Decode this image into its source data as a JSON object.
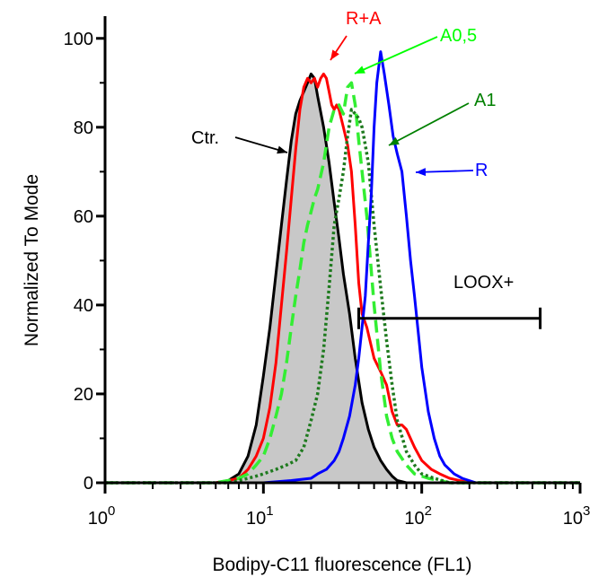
{
  "chart_data": {
    "type": "area",
    "xlabel": "Bodipy-C11 fluorescence (FL1)",
    "ylabel": "Normalized To Mode",
    "x_scale": "log",
    "xlim": [
      1,
      1000
    ],
    "ylim": [
      0,
      105
    ],
    "x_ticks": [
      {
        "value": 1,
        "base": "10",
        "exp": "0"
      },
      {
        "value": 10,
        "base": "10",
        "exp": "1"
      },
      {
        "value": 100,
        "base": "10",
        "exp": "2"
      },
      {
        "value": 1000,
        "base": "10",
        "exp": "3"
      }
    ],
    "y_ticks": [
      0,
      20,
      40,
      60,
      80,
      100
    ],
    "grid": false,
    "legend": "none",
    "series": [
      {
        "name": "Ctr.",
        "label_color": "#000000",
        "color": "#000000",
        "fill": "#c8c8c8",
        "style": "solid",
        "points": [
          [
            1,
            0
          ],
          [
            5,
            0
          ],
          [
            6,
            0.5
          ],
          [
            7,
            2
          ],
          [
            8,
            6
          ],
          [
            9,
            13
          ],
          [
            10,
            24
          ],
          [
            11,
            35
          ],
          [
            12,
            47
          ],
          [
            13,
            58
          ],
          [
            14,
            68
          ],
          [
            15,
            77
          ],
          [
            16,
            83
          ],
          [
            17,
            86
          ],
          [
            18,
            88
          ],
          [
            19,
            90
          ],
          [
            20,
            92
          ],
          [
            21,
            91
          ],
          [
            22,
            87
          ],
          [
            24,
            80
          ],
          [
            26,
            72
          ],
          [
            28,
            63
          ],
          [
            30,
            55
          ],
          [
            32,
            47
          ],
          [
            35,
            38
          ],
          [
            38,
            28
          ],
          [
            42,
            18
          ],
          [
            46,
            12
          ],
          [
            50,
            8
          ],
          [
            55,
            5
          ],
          [
            60,
            3
          ],
          [
            65,
            1.5
          ],
          [
            70,
            0.5
          ],
          [
            80,
            0
          ],
          [
            1000,
            0
          ]
        ]
      },
      {
        "name": "R+A",
        "label_color": "#ff0000",
        "color": "#ff0000",
        "style": "solid",
        "points": [
          [
            1,
            0
          ],
          [
            5,
            0
          ],
          [
            6,
            0.5
          ],
          [
            7,
            1
          ],
          [
            8,
            3
          ],
          [
            9,
            6
          ],
          [
            10,
            10
          ],
          [
            11,
            17
          ],
          [
            12,
            27
          ],
          [
            13,
            40
          ],
          [
            14,
            52
          ],
          [
            15,
            64
          ],
          [
            16,
            75
          ],
          [
            17,
            84
          ],
          [
            18,
            89
          ],
          [
            19,
            91
          ],
          [
            20,
            90
          ],
          [
            21,
            91
          ],
          [
            22,
            89
          ],
          [
            23,
            91
          ],
          [
            24,
            92
          ],
          [
            25,
            91
          ],
          [
            26,
            88
          ],
          [
            27,
            85
          ],
          [
            28,
            84
          ],
          [
            29,
            85
          ],
          [
            30,
            84
          ],
          [
            32,
            80
          ],
          [
            34,
            76
          ],
          [
            36,
            70
          ],
          [
            38,
            58
          ],
          [
            40,
            45
          ],
          [
            42,
            38
          ],
          [
            45,
            35
          ],
          [
            50,
            28
          ],
          [
            55,
            25
          ],
          [
            60,
            22
          ],
          [
            65,
            16
          ],
          [
            70,
            13
          ],
          [
            75,
            13
          ],
          [
            80,
            12
          ],
          [
            90,
            8
          ],
          [
            100,
            5
          ],
          [
            115,
            3
          ],
          [
            130,
            2
          ],
          [
            150,
            1
          ],
          [
            200,
            0
          ],
          [
            1000,
            0
          ]
        ]
      },
      {
        "name": "A0,5",
        "label_color": "#00ff00",
        "color": "#33ee33",
        "style": "dashed",
        "points": [
          [
            1,
            0
          ],
          [
            5,
            0
          ],
          [
            6,
            0.5
          ],
          [
            7,
            1
          ],
          [
            8,
            2
          ],
          [
            9,
            4
          ],
          [
            10,
            6
          ],
          [
            11,
            10
          ],
          [
            12,
            15
          ],
          [
            13,
            20
          ],
          [
            14,
            27
          ],
          [
            15,
            35
          ],
          [
            16,
            42
          ],
          [
            17,
            48
          ],
          [
            18,
            54
          ],
          [
            19,
            58
          ],
          [
            20,
            61
          ],
          [
            21,
            64
          ],
          [
            22,
            66
          ],
          [
            24,
            72
          ],
          [
            26,
            80
          ],
          [
            28,
            84
          ],
          [
            30,
            85
          ],
          [
            32,
            83
          ],
          [
            34,
            89
          ],
          [
            36,
            90
          ],
          [
            38,
            85
          ],
          [
            40,
            77
          ],
          [
            42,
            70
          ],
          [
            45,
            60
          ],
          [
            50,
            40
          ],
          [
            55,
            25
          ],
          [
            60,
            15
          ],
          [
            65,
            10
          ],
          [
            70,
            7
          ],
          [
            80,
            4
          ],
          [
            90,
            2
          ],
          [
            110,
            1
          ],
          [
            150,
            0
          ],
          [
            1000,
            0
          ]
        ]
      },
      {
        "name": "A1",
        "label_color": "#008000",
        "color": "#1e7a1e",
        "style": "dotted",
        "points": [
          [
            1,
            0
          ],
          [
            6,
            0
          ],
          [
            7,
            0.5
          ],
          [
            8,
            1
          ],
          [
            9,
            1.5
          ],
          [
            10,
            2
          ],
          [
            12,
            3
          ],
          [
            14,
            4
          ],
          [
            16,
            5
          ],
          [
            18,
            8
          ],
          [
            20,
            14
          ],
          [
            22,
            20
          ],
          [
            24,
            30
          ],
          [
            26,
            44
          ],
          [
            28,
            58
          ],
          [
            30,
            64
          ],
          [
            32,
            70
          ],
          [
            34,
            78
          ],
          [
            36,
            84
          ],
          [
            38,
            83
          ],
          [
            40,
            82
          ],
          [
            42,
            80
          ],
          [
            44,
            76
          ],
          [
            46,
            72
          ],
          [
            50,
            58
          ],
          [
            55,
            44
          ],
          [
            60,
            32
          ],
          [
            65,
            22
          ],
          [
            70,
            14
          ],
          [
            80,
            7
          ],
          [
            90,
            4
          ],
          [
            100,
            2
          ],
          [
            120,
            1
          ],
          [
            150,
            0
          ],
          [
            1000,
            0
          ]
        ]
      },
      {
        "name": "R",
        "label_color": "#0000ff",
        "color": "#0000ff",
        "style": "solid",
        "points": [
          [
            1,
            0
          ],
          [
            10,
            0
          ],
          [
            15,
            0.5
          ],
          [
            20,
            1
          ],
          [
            22,
            2
          ],
          [
            25,
            3
          ],
          [
            28,
            5
          ],
          [
            30,
            7
          ],
          [
            32,
            10
          ],
          [
            35,
            15
          ],
          [
            38,
            22
          ],
          [
            40,
            28
          ],
          [
            42,
            35
          ],
          [
            44,
            42
          ],
          [
            46,
            54
          ],
          [
            48,
            65
          ],
          [
            50,
            80
          ],
          [
            52,
            90
          ],
          [
            55,
            97
          ],
          [
            58,
            92
          ],
          [
            62,
            85
          ],
          [
            66,
            78
          ],
          [
            70,
            74
          ],
          [
            75,
            70
          ],
          [
            80,
            60
          ],
          [
            85,
            50
          ],
          [
            90,
            42
          ],
          [
            95,
            34
          ],
          [
            100,
            26
          ],
          [
            110,
            16
          ],
          [
            120,
            10
          ],
          [
            130,
            6
          ],
          [
            140,
            4
          ],
          [
            160,
            2
          ],
          [
            180,
            1
          ],
          [
            220,
            0
          ],
          [
            1000,
            0
          ]
        ]
      }
    ],
    "annotations": [
      {
        "text": "Ctr.",
        "color": "#000000"
      },
      {
        "text": "R+A",
        "color": "#ff0000"
      },
      {
        "text": "A0,5",
        "color": "#00ff00"
      },
      {
        "text": "A1",
        "color": "#008000"
      },
      {
        "text": "R",
        "color": "#0000ff"
      },
      {
        "text": "LOOX+",
        "color": "#000000"
      }
    ],
    "gate": {
      "label": "LOOX+",
      "x_start": 40,
      "x_end": 560,
      "y": 37
    }
  }
}
